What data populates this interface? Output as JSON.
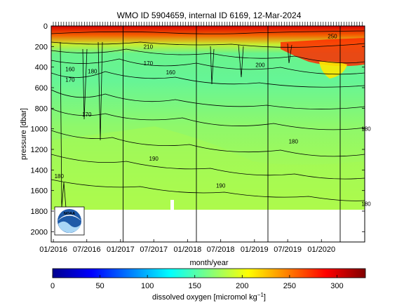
{
  "chart_data": {
    "type": "heatmap",
    "title": "WMO ID 5904659, internal ID 6169, 12-Mar-2024",
    "xlabel": "month/year",
    "ylabel": "pressure [dbar]",
    "x_ticks": [
      "01/2016",
      "07/2016",
      "01/2017",
      "07/2017",
      "01/2018",
      "07/2018",
      "01/2019",
      "07/2019",
      "01/2020"
    ],
    "y_ticks": [
      "0",
      "200",
      "400",
      "600",
      "800",
      "1000",
      "1200",
      "1400",
      "1600",
      "1800",
      "2000"
    ],
    "ylim": [
      2100,
      0
    ],
    "colorbar": {
      "label": "dissolved oxygen [micromol kg",
      "label_exponent": "−1",
      "label_suffix": "]",
      "ticks": [
        "0",
        "50",
        "100",
        "150",
        "200",
        "250",
        "300"
      ],
      "range": [
        0,
        330
      ],
      "colormap": "jet"
    },
    "profile_depth_dbar": 1800,
    "contour_labels": [
      {
        "text": "250",
        "date": "2020-03",
        "pressure": 100
      },
      {
        "text": "210",
        "date": "2017-06",
        "pressure": 200
      },
      {
        "text": "170",
        "date": "2017-06",
        "pressure": 360
      },
      {
        "text": "160",
        "date": "2016-04",
        "pressure": 420
      },
      {
        "text": "170",
        "date": "2016-04",
        "pressure": 520
      },
      {
        "text": "180",
        "date": "2016-08",
        "pressure": 440
      },
      {
        "text": "160",
        "date": "2017-10",
        "pressure": 450
      },
      {
        "text": "200",
        "date": "2019-02",
        "pressure": 380
      },
      {
        "text": "170",
        "date": "2016-07",
        "pressure": 860
      },
      {
        "text": "180",
        "date": "2020-09",
        "pressure": 1000
      },
      {
        "text": "180",
        "date": "2019-08",
        "pressure": 1120
      },
      {
        "text": "190",
        "date": "2017-07",
        "pressure": 1290
      },
      {
        "text": "180",
        "date": "2016-02",
        "pressure": 1460
      },
      {
        "text": "190",
        "date": "2018-07",
        "pressure": 1550
      },
      {
        "text": "180",
        "date": "2020-09",
        "pressure": 1730
      }
    ],
    "deployment_lines": [
      "2016-12-20",
      "2017-12-27",
      "2018-12-15",
      "2019-12-06"
    ]
  },
  "logo_text": "NOAA"
}
